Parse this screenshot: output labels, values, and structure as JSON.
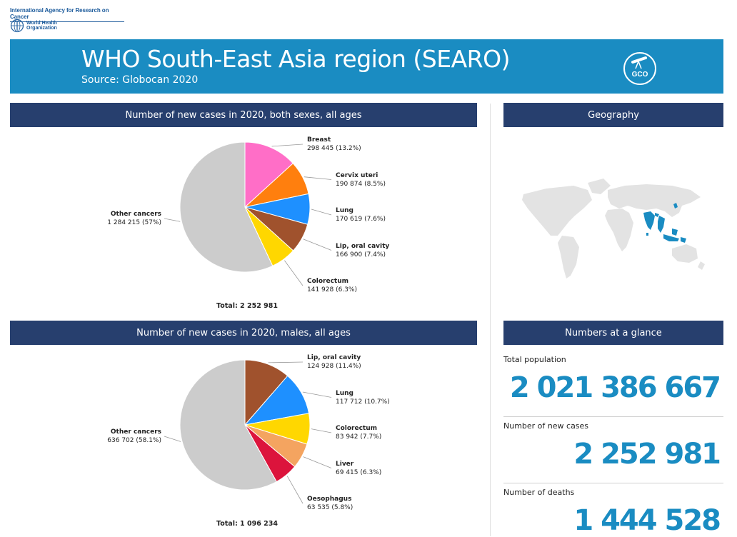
{
  "brand": {
    "iarc": "International Agency for Research on Cancer",
    "who_line1": "World Health",
    "who_line2": "Organization"
  },
  "banner": {
    "title": "WHO South-East Asia region (SEARO)",
    "subtitle": "Source: Globocan 2020",
    "logo_text": "GCO",
    "color": "#1a8cc2"
  },
  "sections": {
    "chart1_title": "Number of new cases in 2020, both sexes, all ages",
    "chart2_title": "Number of new cases in 2020, males, all ages",
    "geo_title": "Geography",
    "glance_title": "Numbers at a glance",
    "header_color": "#273f6e"
  },
  "glance": {
    "population_label": "Total population",
    "population_value": "2 021 386 667",
    "new_cases_label": "Number of new cases",
    "new_cases_value": "2 252 981",
    "deaths_label": "Number of deaths",
    "deaths_value": "1 444 528"
  },
  "chart_data": [
    {
      "type": "pie",
      "title": "Number of new cases in 2020, both sexes, all ages",
      "total_label": "Total: 2 252 981",
      "slices": [
        {
          "name": "Breast",
          "value": 298445,
          "display": "298 445 (13.2%)",
          "percent": 13.2,
          "color": "#ff6ec7"
        },
        {
          "name": "Cervix uteri",
          "value": 190874,
          "display": "190 874 (8.5%)",
          "percent": 8.5,
          "color": "#ff7f0e"
        },
        {
          "name": "Lung",
          "value": 170619,
          "display": "170 619 (7.6%)",
          "percent": 7.6,
          "color": "#1e90ff"
        },
        {
          "name": "Lip, oral cavity",
          "value": 166900,
          "display": "166 900 (7.4%)",
          "percent": 7.4,
          "color": "#a0522d"
        },
        {
          "name": "Colorectum",
          "value": 141928,
          "display": "141 928 (6.3%)",
          "percent": 6.3,
          "color": "#ffd700"
        },
        {
          "name": "Other cancers",
          "value": 1284215,
          "display": "1 284 215 (57%)",
          "percent": 57,
          "color": "#cccccc"
        }
      ]
    },
    {
      "type": "pie",
      "title": "Number of new cases in 2020, males, all ages",
      "total_label": "Total: 1 096 234",
      "slices": [
        {
          "name": "Lip, oral cavity",
          "value": 124928,
          "display": "124 928 (11.4%)",
          "percent": 11.4,
          "color": "#a0522d"
        },
        {
          "name": "Lung",
          "value": 117712,
          "display": "117 712 (10.7%)",
          "percent": 10.7,
          "color": "#1e90ff"
        },
        {
          "name": "Colorectum",
          "value": 83942,
          "display": "83 942 (7.7%)",
          "percent": 7.7,
          "color": "#ffd700"
        },
        {
          "name": "Liver",
          "value": 69415,
          "display": "69 415 (6.3%)",
          "percent": 6.3,
          "color": "#f4a460"
        },
        {
          "name": "Oesophagus",
          "value": 63535,
          "display": "63 535 (5.8%)",
          "percent": 5.8,
          "color": "#dc143c"
        },
        {
          "name": "Other cancers",
          "value": 636702,
          "display": "636 702 (58.1%)",
          "percent": 58.1,
          "color": "#cccccc"
        }
      ]
    }
  ]
}
